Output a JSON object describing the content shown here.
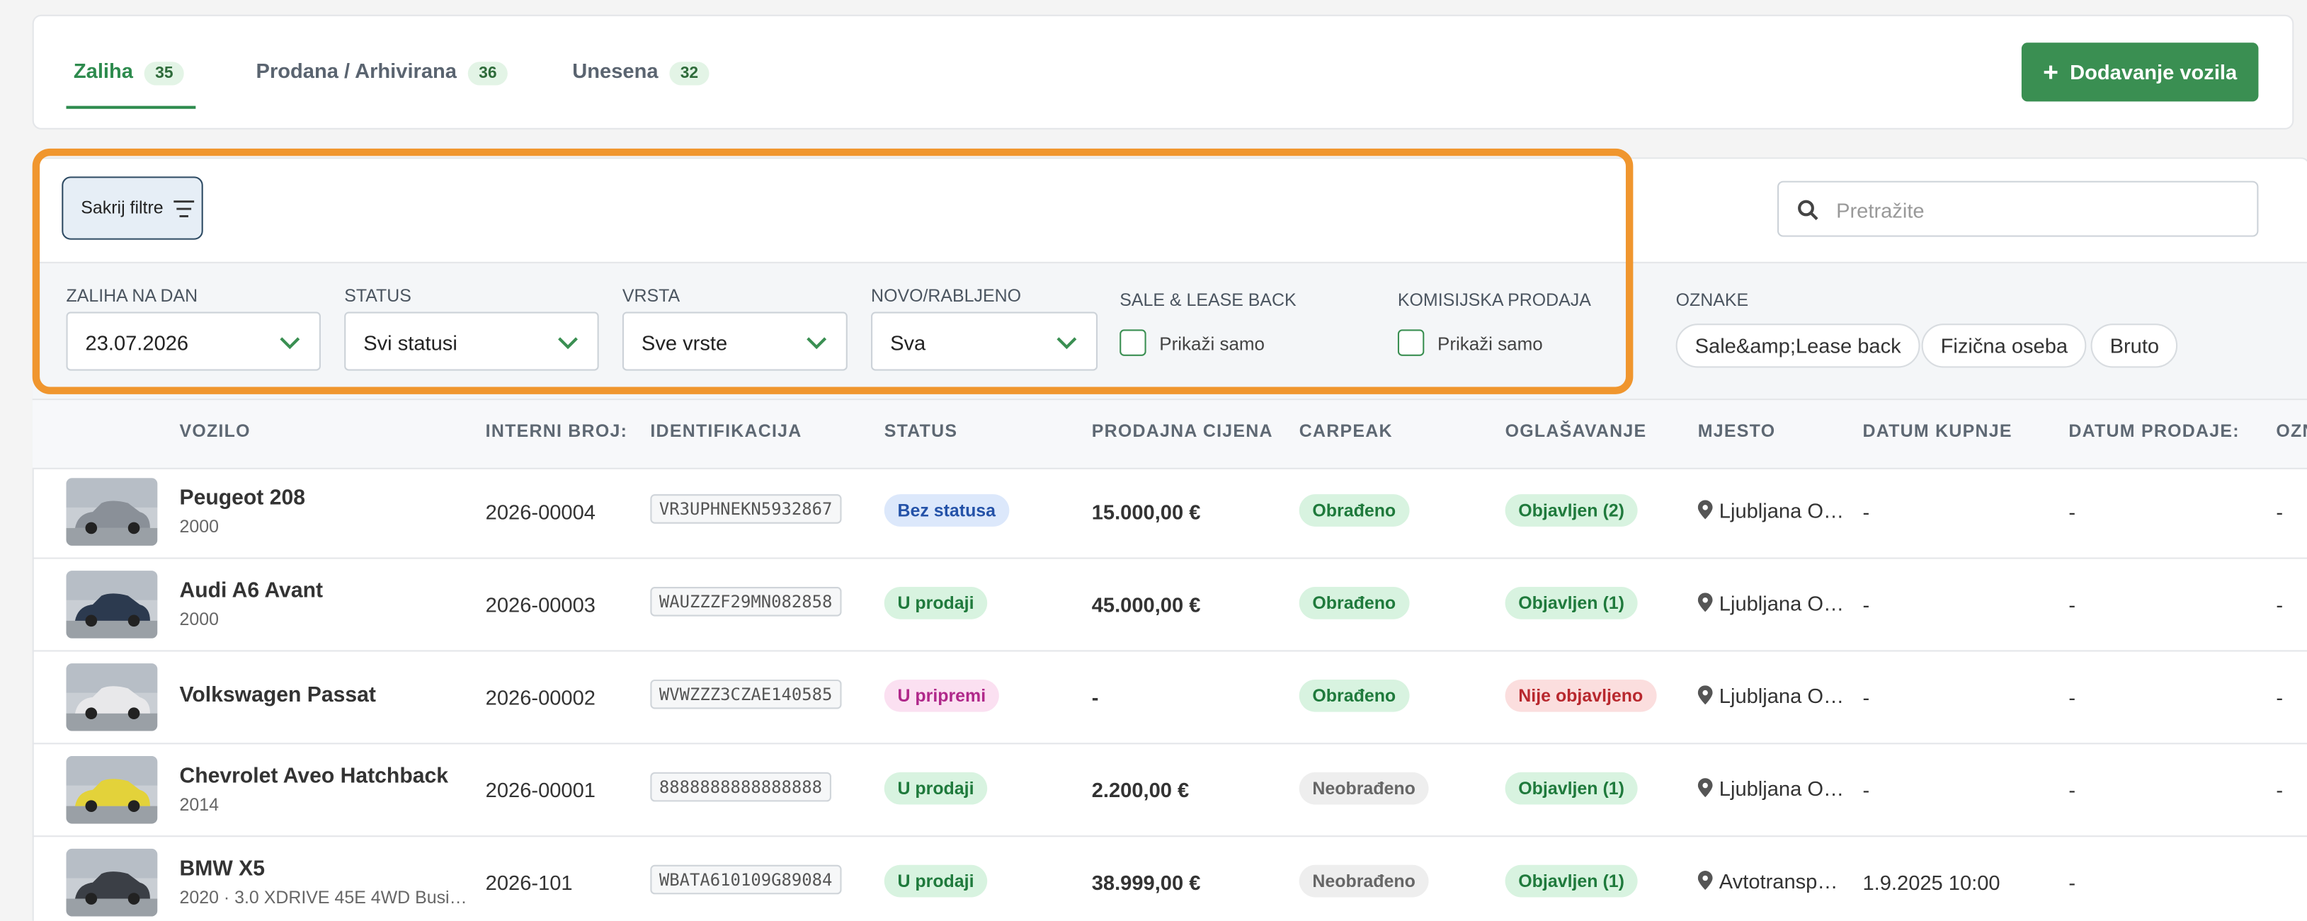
{
  "tabs": [
    {
      "label": "Zaliha",
      "count": "35"
    },
    {
      "label": "Prodana / Arhivirana",
      "count": "36"
    },
    {
      "label": "Unesena",
      "count": "32"
    }
  ],
  "add_button": "Dodavanje vozila",
  "toggle_filters": "Sakrij filtre",
  "search_placeholder": "Pretražite",
  "filters": [
    {
      "label": "ZALIHA NA DAN",
      "value": "23.07.2026"
    },
    {
      "label": "STATUS",
      "value": "Svi statusi"
    },
    {
      "label": "VRSTA",
      "value": "Sve vrste"
    },
    {
      "label": "NOVO/RABLJENO",
      "value": "Sva"
    }
  ],
  "checkboxes": [
    {
      "label": "SALE & LEASE BACK",
      "option": "Prikaži samo"
    },
    {
      "label": "KOMISIJSKA PRODAJA",
      "option": "Prikaži samo"
    }
  ],
  "tags_label": "OZNAKE",
  "tags": [
    "Sale&amp;Lease back",
    "Fizična oseba",
    "Bruto"
  ],
  "table": {
    "columns": [
      "VOZILO",
      "INTERNI BROJ:",
      "IDENTIFIKACIJA",
      "STATUS",
      "PRODAJNA CIJENA",
      "CARPEAK",
      "OGLAŠAVANJE",
      "MJESTO",
      "DATUM KUPNJE",
      "DATUM PRODAJE:",
      "OZNAKE"
    ],
    "rows": [
      {
        "name": "Peugeot 208",
        "sub": "2000",
        "internal": "2026-00004",
        "vin": "VR3UPHNEKN5932867",
        "status": {
          "text": "Bez statusa",
          "bg": "#dce8fb",
          "fg": "#2452a8"
        },
        "price": "15.000,00 €",
        "carpeak": {
          "text": "Obrađeno",
          "bg": "#d8f3e0",
          "fg": "#1f7a3c"
        },
        "ads": {
          "text": "Objavljen (2)",
          "bg": "#d8f3e0",
          "fg": "#1f7a3c"
        },
        "location": "Ljubljana O…",
        "buy_date": "-",
        "sell_date": "-",
        "extra": "-"
      },
      {
        "name": "Audi A6 Avant",
        "sub": "2000",
        "internal": "2026-00003",
        "vin": "WAUZZZF29MN082858",
        "status": {
          "text": "U prodaji",
          "bg": "#d8f3e0",
          "fg": "#1f7a3c"
        },
        "price": "45.000,00 €",
        "carpeak": {
          "text": "Obrađeno",
          "bg": "#d8f3e0",
          "fg": "#1f7a3c"
        },
        "ads": {
          "text": "Objavljen (1)",
          "bg": "#d8f3e0",
          "fg": "#1f7a3c"
        },
        "location": "Ljubljana O…",
        "buy_date": "-",
        "sell_date": "-",
        "extra": "-"
      },
      {
        "name": "Volkswagen Passat",
        "internal": "2026-00002",
        "vin": "WVWZZZ3CZAE140585",
        "status": {
          "text": "U pripremi",
          "bg": "#fbe0f1",
          "fg": "#b0288a"
        },
        "price": "-",
        "carpeak": {
          "text": "Obrađeno",
          "bg": "#d8f3e0",
          "fg": "#1f7a3c"
        },
        "ads": {
          "text": "Nije objavljeno",
          "bg": "#fbdede",
          "fg": "#b8282e"
        },
        "location": "Ljubljana O…",
        "buy_date": "-",
        "sell_date": "-",
        "extra": "-"
      },
      {
        "name": "Chevrolet Aveo Hatchback",
        "sub": "2014",
        "internal": "2026-00001",
        "vin": "8888888888888888",
        "status": {
          "text": "U prodaji",
          "bg": "#d8f3e0",
          "fg": "#1f7a3c"
        },
        "price": "2.200,00 €",
        "carpeak": {
          "text": "Neobrađeno",
          "bg": "#eeeeee",
          "fg": "#666666"
        },
        "ads": {
          "text": "Objavljen (1)",
          "bg": "#d8f3e0",
          "fg": "#1f7a3c"
        },
        "location": "Ljubljana O…",
        "buy_date": "-",
        "sell_date": "-",
        "extra": "-"
      },
      {
        "name": "BMW X5",
        "sub": "2020 · 3.0 XDRIVE 45E 4WD Busi…",
        "internal": "2026-101",
        "vin": "WBATA610109G89084",
        "status": {
          "text": "U prodaji",
          "bg": "#d8f3e0",
          "fg": "#1f7a3c"
        },
        "price": "38.999,00 €",
        "carpeak": {
          "text": "Neobrađeno",
          "bg": "#eeeeee",
          "fg": "#666666"
        },
        "ads": {
          "text": "Objavljen (1)",
          "bg": "#d8f3e0",
          "fg": "#1f7a3c"
        },
        "location": "Avtotransp…",
        "buy_date": "1.9.2025 10:00",
        "sell_date": "-"
      }
    ]
  }
}
